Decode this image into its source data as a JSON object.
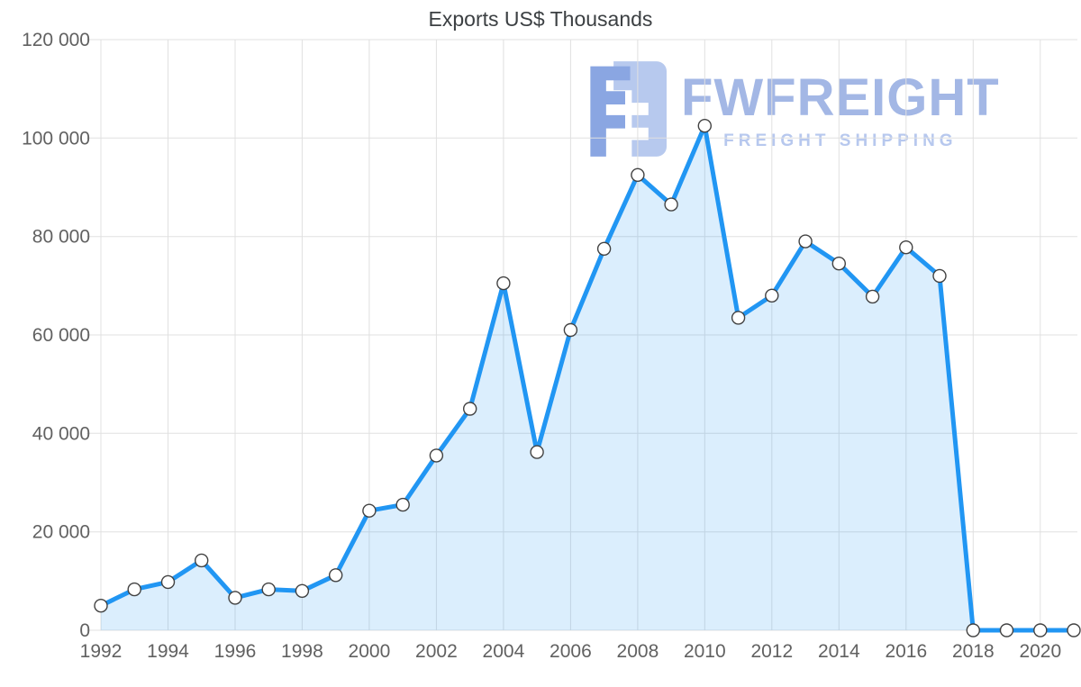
{
  "title": "Exports US$ Thousands",
  "watermark": {
    "brand": "FWFREIGHT",
    "tagline": "FREIGHT SHIPPING"
  },
  "colors": {
    "line": "#2196f3",
    "fill_opacity": "0.16",
    "marker_fill": "#ffffff",
    "marker_stroke": "#424242",
    "grid": "#e0e0e0",
    "axis_text": "#616161",
    "title_text": "#3c4043",
    "watermark_primary": "#a3b7e5",
    "watermark_secondary": "#b7c8ee",
    "logo_dark": "#8aa6e2",
    "logo_light": "#b7c9ee"
  },
  "chart_data": {
    "type": "area",
    "title": "Exports US$ Thousands",
    "x": [
      1992,
      1993,
      1994,
      1995,
      1996,
      1997,
      1998,
      1999,
      2000,
      2001,
      2002,
      2003,
      2004,
      2005,
      2006,
      2007,
      2008,
      2009,
      2010,
      2011,
      2012,
      2013,
      2014,
      2015,
      2016,
      2017,
      2018,
      2019,
      2020,
      2021
    ],
    "values": [
      5000,
      8300,
      9800,
      14200,
      6600,
      8300,
      8000,
      11200,
      24300,
      25500,
      35500,
      45000,
      70500,
      36200,
      61000,
      77500,
      92500,
      86500,
      102500,
      63500,
      68000,
      79000,
      74500,
      67800,
      77800,
      72000,
      0,
      0,
      0,
      0
    ],
    "x_ticks": [
      "1992",
      "1994",
      "1996",
      "1998",
      "2000",
      "2002",
      "2004",
      "2006",
      "2008",
      "2010",
      "2012",
      "2014",
      "2016",
      "2018",
      "2020"
    ],
    "y_ticks": [
      0,
      20000,
      40000,
      60000,
      80000,
      100000,
      120000
    ],
    "y_tick_labels": [
      "0",
      "20 000",
      "40 000",
      "60 000",
      "80 000",
      "100 000",
      "120 000"
    ],
    "xlim": [
      1992,
      2021
    ],
    "ylim": [
      0,
      120000
    ],
    "grid": true,
    "legend": "none"
  }
}
